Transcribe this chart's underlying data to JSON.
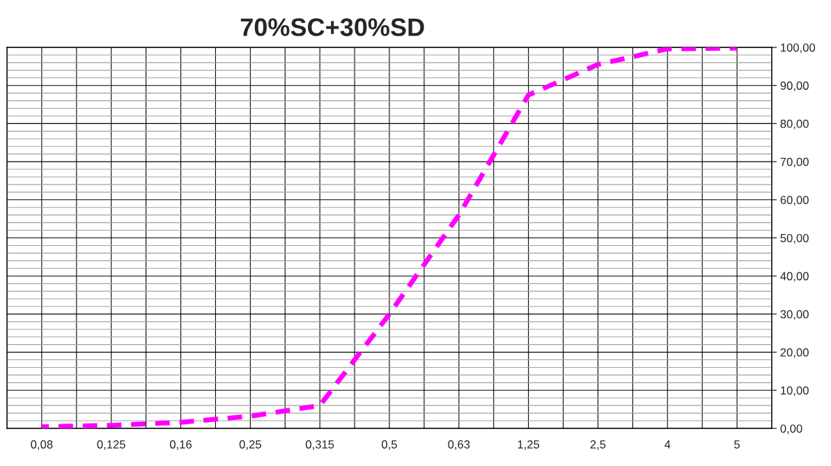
{
  "chart_data": {
    "type": "line",
    "title": "70%SC+30%SD",
    "categories": [
      "0,08",
      "0,125",
      "0,16",
      "0,25",
      "0,315",
      "0,5",
      "0,63",
      "1,25",
      "2,5",
      "4",
      "5"
    ],
    "series": [
      {
        "color": "#ff00ff",
        "line_style": "dashed",
        "values": [
          0.4,
          0.8,
          1.6,
          3.2,
          6,
          30,
          56,
          87.5,
          95.5,
          99.6,
          99.8
        ]
      }
    ],
    "ylim": [
      0,
      100
    ],
    "yticks": [
      {
        "value": 0,
        "label": "0,00"
      },
      {
        "value": 10,
        "label": "10,00"
      },
      {
        "value": 20,
        "label": "20,00"
      },
      {
        "value": 30,
        "label": "30,00"
      },
      {
        "value": 40,
        "label": "40,00"
      },
      {
        "value": 50,
        "label": "50,00"
      },
      {
        "value": 60,
        "label": "60,00"
      },
      {
        "value": 70,
        "label": "70,00"
      },
      {
        "value": 80,
        "label": "80,00"
      },
      {
        "value": 90,
        "label": "90,00"
      },
      {
        "value": 100,
        "label": "100,00"
      }
    ],
    "grid": true,
    "marker": "none"
  }
}
